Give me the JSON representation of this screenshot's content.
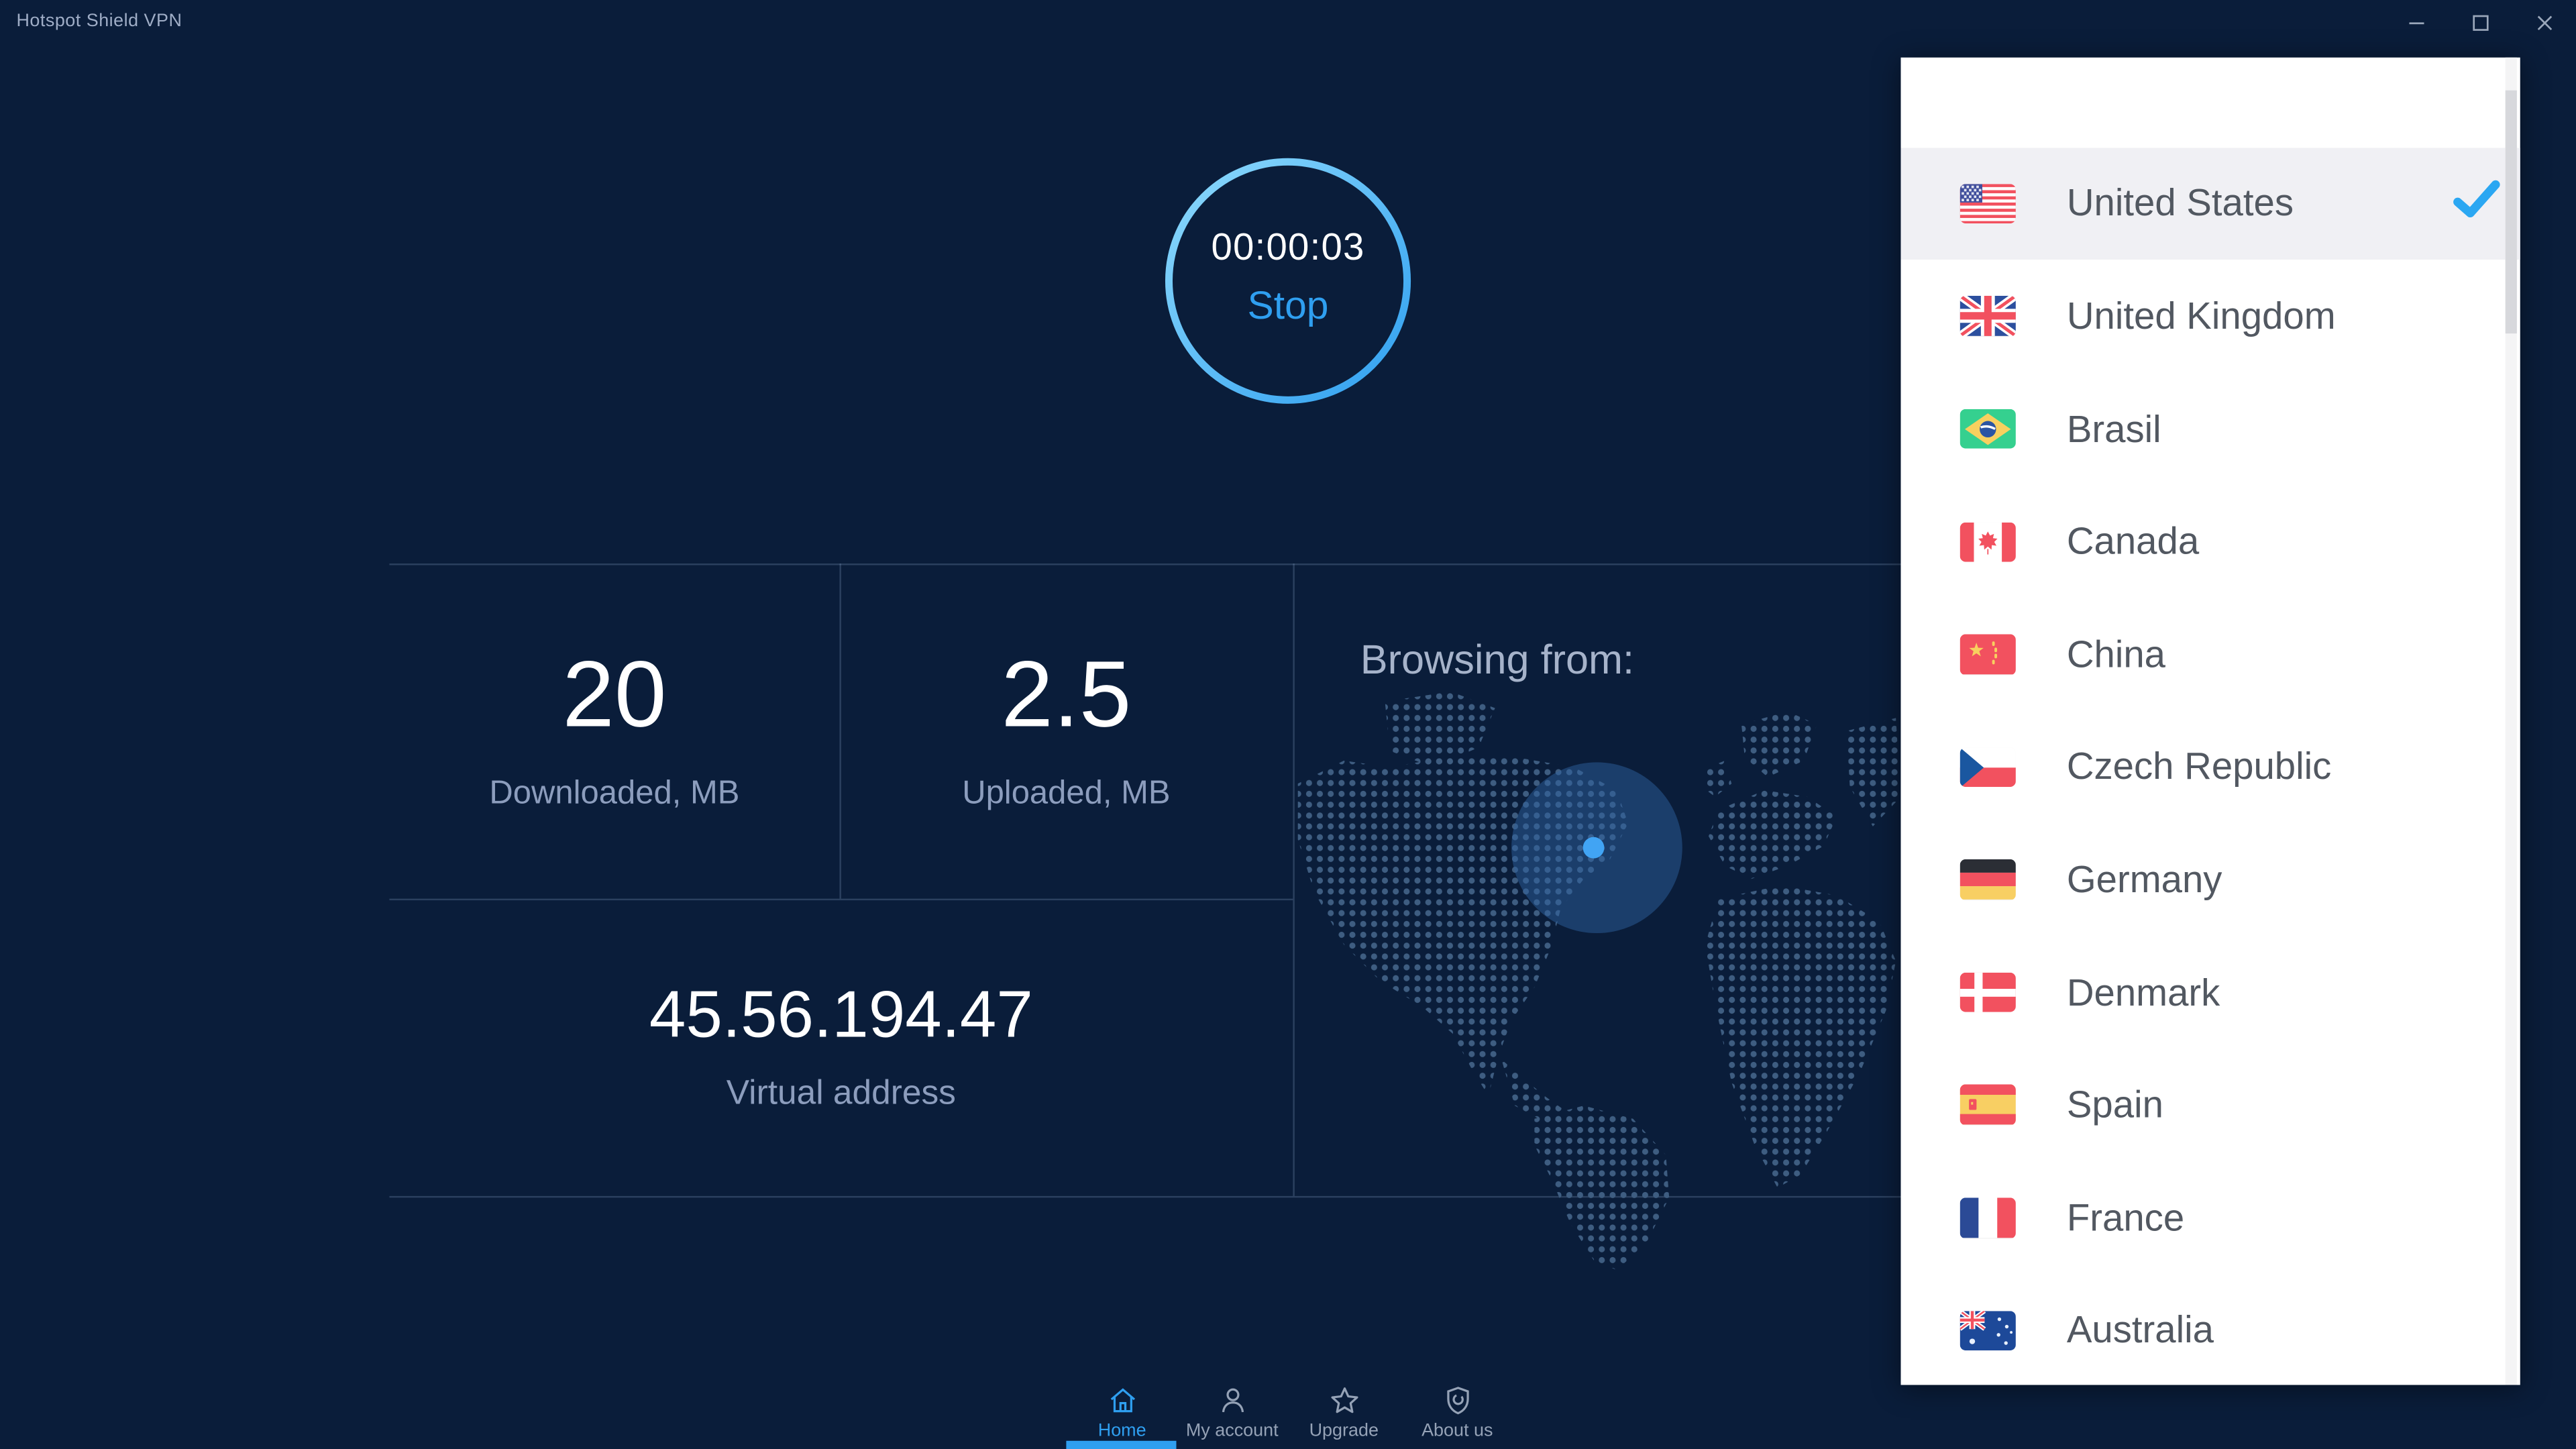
{
  "window": {
    "title": "Hotspot Shield VPN"
  },
  "connection": {
    "timer": "00:00:03",
    "stop_label": "Stop"
  },
  "stats": {
    "downloaded": {
      "value": "20",
      "label": "Downloaded, MB"
    },
    "uploaded": {
      "value": "2.5",
      "label": "Uploaded, MB"
    }
  },
  "virtual_address": {
    "value": "45.56.194.47",
    "label": "Virtual address"
  },
  "map": {
    "heading": "Browsing from:"
  },
  "nav": {
    "items": [
      {
        "label": "Home",
        "icon": "home-icon",
        "active": true
      },
      {
        "label": "My account",
        "icon": "my-account-icon",
        "active": false
      },
      {
        "label": "Upgrade",
        "icon": "upgrade-star-icon",
        "active": false
      },
      {
        "label": "About us",
        "icon": "about-shield-icon",
        "active": false
      }
    ]
  },
  "countries": [
    {
      "name": "United States",
      "flag": "us",
      "selected": true
    },
    {
      "name": "United Kingdom",
      "flag": "uk",
      "selected": false
    },
    {
      "name": "Brasil",
      "flag": "br",
      "selected": false
    },
    {
      "name": "Canada",
      "flag": "ca",
      "selected": false
    },
    {
      "name": "China",
      "flag": "cn",
      "selected": false
    },
    {
      "name": "Czech Republic",
      "flag": "cz",
      "selected": false
    },
    {
      "name": "Germany",
      "flag": "de",
      "selected": false
    },
    {
      "name": "Denmark",
      "flag": "dk",
      "selected": false
    },
    {
      "name": "Spain",
      "flag": "es",
      "selected": false
    },
    {
      "name": "France",
      "flag": "fr",
      "selected": false
    },
    {
      "name": "Australia",
      "flag": "au",
      "selected": false
    }
  ],
  "colors": {
    "background": "#0a1d3a",
    "accent": "#2f9ff0",
    "ring_gradient_start": "#8edafc",
    "ring_gradient_end": "#2f9ff0",
    "panel": "#ffffff",
    "selected_row": "#f0f0f4",
    "check": "#2ba7f2",
    "map_dot": "#3e5d81",
    "map_highlight": "rgba(47,99,160,0.48)",
    "location_dot": "#41a4f4",
    "muted_label": "#8c9dbd"
  }
}
